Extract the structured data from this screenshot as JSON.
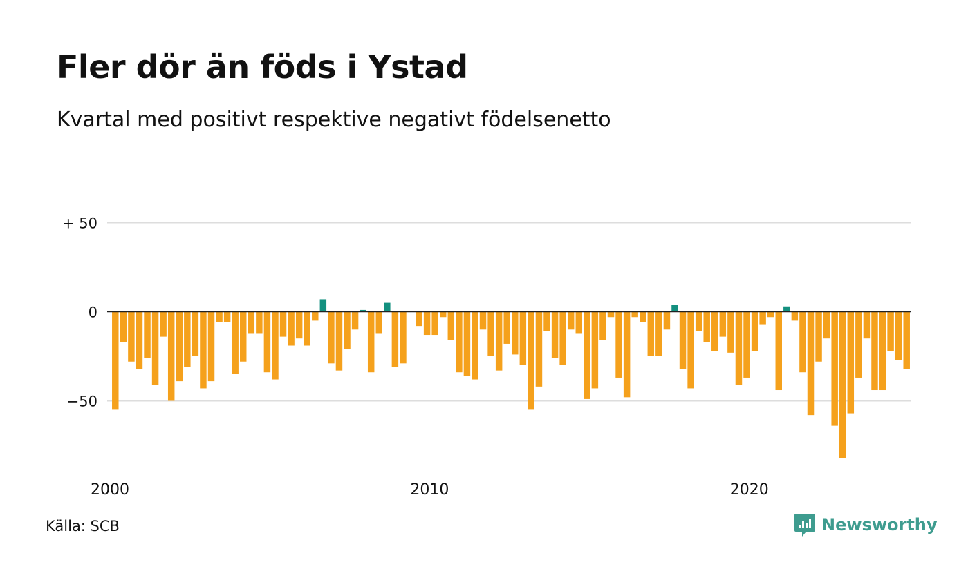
{
  "title": "Fler dör än föds i Ystad",
  "subtitle": "Kvartal med positivt respektive negativt födelsenetto",
  "source": "Källa: SCB",
  "brand": {
    "name": "Newsworthy",
    "icon": "newsworthy-logo-icon"
  },
  "colors": {
    "negative": "#f5a11c",
    "positive": "#13907f",
    "grid": "#dddddd",
    "zero_line": "#222222",
    "brand": "#3e9c8f"
  },
  "chart_data": {
    "type": "bar",
    "title": "Fler dör än föds i Ystad",
    "subtitle": "Kvartal med positivt respektive negativt födelsenetto",
    "xlabel": "",
    "ylabel": "",
    "x_tick_labels": [
      "2000",
      "2010",
      "2020"
    ],
    "y_ticks": [
      {
        "value": 50,
        "label": "+ 50"
      },
      {
        "value": 0,
        "label": "0"
      },
      {
        "value": -50,
        "label": "−50"
      }
    ],
    "ylim": [
      -85,
      55
    ],
    "grid": true,
    "legend": "none",
    "categories": [
      "2000 K1",
      "2000 K2",
      "2000 K3",
      "2000 K4",
      "2001 K1",
      "2001 K2",
      "2001 K3",
      "2001 K4",
      "2002 K1",
      "2002 K2",
      "2002 K3",
      "2002 K4",
      "2003 K1",
      "2003 K2",
      "2003 K3",
      "2003 K4",
      "2004 K1",
      "2004 K2",
      "2004 K3",
      "2004 K4",
      "2005 K1",
      "2005 K2",
      "2005 K3",
      "2005 K4",
      "2006 K1",
      "2006 K2",
      "2006 K3",
      "2006 K4",
      "2007 K1",
      "2007 K2",
      "2007 K3",
      "2007 K4",
      "2008 K1",
      "2008 K2",
      "2008 K3",
      "2008 K4",
      "2009 K1",
      "2009 K2",
      "2009 K3",
      "2009 K4",
      "2010 K1",
      "2010 K2",
      "2010 K3",
      "2010 K4",
      "2011 K1",
      "2011 K2",
      "2011 K3",
      "2011 K4",
      "2012 K1",
      "2012 K2",
      "2012 K3",
      "2012 K4",
      "2013 K1",
      "2013 K2",
      "2013 K3",
      "2013 K4",
      "2014 K1",
      "2014 K2",
      "2014 K3",
      "2014 K4",
      "2015 K1",
      "2015 K2",
      "2015 K3",
      "2015 K4",
      "2016 K1",
      "2016 K2",
      "2016 K3",
      "2016 K4",
      "2017 K1",
      "2017 K2",
      "2017 K3",
      "2017 K4",
      "2018 K1",
      "2018 K2",
      "2018 K3",
      "2018 K4",
      "2019 K1",
      "2019 K2",
      "2019 K3",
      "2019 K4",
      "2020 K1",
      "2020 K2",
      "2020 K3",
      "2020 K4",
      "2021 K1",
      "2021 K2",
      "2021 K3",
      "2021 K4",
      "2022 K1",
      "2022 K2",
      "2022 K3",
      "2022 K4",
      "2023 K1",
      "2023 K2",
      "2023 K3",
      "2023 K4",
      "2024 K1",
      "2024 K2",
      "2024 K3",
      "2024 K4"
    ],
    "values": [
      -55,
      -17,
      -28,
      -32,
      -26,
      -41,
      -14,
      -50,
      -39,
      -31,
      -25,
      -43,
      -39,
      -6,
      -6,
      -35,
      -28,
      -12,
      -12,
      -34,
      -38,
      -14,
      -19,
      -15,
      -19,
      -5,
      7,
      -29,
      -33,
      -21,
      -10,
      1,
      -34,
      -12,
      5,
      -31,
      -29,
      0,
      -8,
      -13,
      -13,
      -3,
      -16,
      -34,
      -36,
      -38,
      -10,
      -25,
      -33,
      -18,
      -24,
      -30,
      -55,
      -42,
      -11,
      -26,
      -30,
      -10,
      -12,
      -49,
      -43,
      -16,
      -3,
      -37,
      -48,
      -3,
      -6,
      -25,
      -25,
      -10,
      4,
      -32,
      -43,
      -11,
      -17,
      -22,
      -14,
      -23,
      -41,
      -37,
      -22,
      -7,
      -3,
      -44,
      3,
      -5,
      -34,
      -58,
      -28,
      -15,
      -64,
      -82,
      -57,
      -37,
      -15,
      -44,
      -44,
      -22,
      -27,
      -32
    ]
  }
}
